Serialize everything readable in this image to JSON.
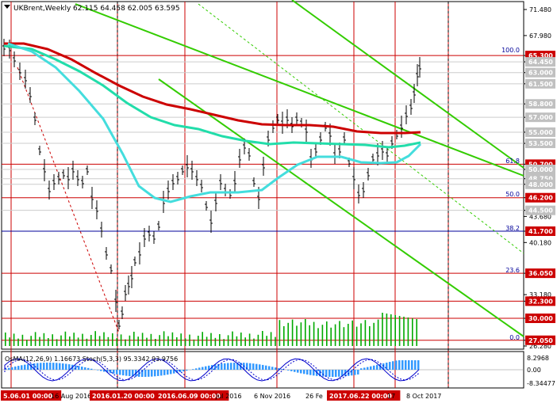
{
  "header": {
    "symbol_tf": "UKBrent,Weekly",
    "ohlc": "62.115 64.458 62.005 63.595"
  },
  "price_scale": [
    "71.480",
    "67.980",
    "65.300",
    "64.450",
    "63.000",
    "61.500",
    "58.800",
    "57.000",
    "55.000",
    "53.500",
    "50.700",
    "50.000",
    "48.750",
    "48.000",
    "46.200",
    "44.500",
    "43.680",
    "41.700",
    "40.180",
    "36.050",
    "33.180",
    "32.300",
    "30.000",
    "27.050",
    "26.280"
  ],
  "levels": [
    {
      "price": "65.300",
      "color": "#cc0000",
      "badge": "#cc0000"
    },
    {
      "price": "64.450",
      "color": "#cccccc",
      "badge": "#c0c0c0"
    },
    {
      "price": "63.000",
      "color": "#cccccc",
      "badge": "#c0c0c0"
    },
    {
      "price": "61.500",
      "color": "#cccccc",
      "badge": "#c0c0c0"
    },
    {
      "price": "58.800",
      "color": "#cccccc",
      "badge": "#c0c0c0"
    },
    {
      "price": "57.000",
      "color": "#cccccc",
      "badge": "#c0c0c0"
    },
    {
      "price": "55.000",
      "color": "#cccccc",
      "badge": "#c0c0c0"
    },
    {
      "price": "53.500",
      "color": "#cccccc",
      "badge": "#c0c0c0"
    },
    {
      "price": "50.700",
      "color": "#cc0000",
      "badge": "#cc0000"
    },
    {
      "price": "50.000",
      "color": "#cccccc",
      "badge": "#c0c0c0"
    },
    {
      "price": "48.750",
      "color": "#cccccc",
      "badge": "#c0c0c0"
    },
    {
      "price": "48.000",
      "color": "#cccccc",
      "badge": "#c0c0c0"
    },
    {
      "price": "46.200",
      "color": "#cc0000",
      "badge": "#cc0000"
    },
    {
      "price": "44.500",
      "color": "#cccccc",
      "badge": "#c0c0c0"
    },
    {
      "price": "41.700",
      "color": "#000099",
      "badge": "#cc0000"
    },
    {
      "price": "36.050",
      "color": "#cc0000",
      "badge": "#cc0000"
    },
    {
      "price": "32.300",
      "color": "#cc0000",
      "badge": "#cc0000"
    },
    {
      "price": "30.000",
      "color": "#cc0000",
      "badge": "#cc0000"
    },
    {
      "price": "27.050",
      "color": "#cc0000",
      "badge": "#cc0000"
    }
  ],
  "fib_labels": [
    "100.0",
    "61.8",
    "50.0",
    "38.2",
    "23.6",
    "0.0"
  ],
  "indicator": {
    "label": "OsMA(12,26,9) 1.16673  Stoch(5,3,3) 95.3342 93.9756",
    "scale": [
      "8.2968",
      "0.00",
      "-8.34477"
    ]
  },
  "time_axis": [
    "5.06.01 00:00",
    "16 Aug 2016",
    "2016.01.20 00:00",
    "2016.06.09 00:00",
    "Jul 2016",
    "6 Nov 2016",
    "26 Fe",
    "2017.06.22 00:00",
    "17",
    "8 Oct 2017"
  ],
  "colors": {
    "ma_red": "#cc0000",
    "ma_teal": "#22ddaa",
    "ma_cyan": "#44dddd",
    "channel": "#33cc00",
    "bars": "#000000",
    "volume": "#00aa00",
    "osma": "#3399ff",
    "stoch": "#0000cc",
    "grid_v": "#cc0000"
  }
}
